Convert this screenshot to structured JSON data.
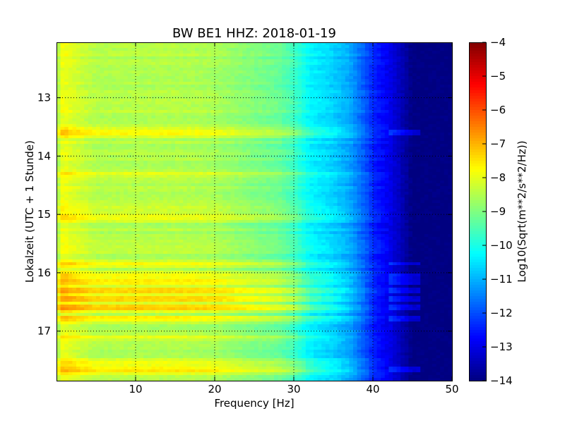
{
  "chart_data": {
    "type": "heatmap",
    "title": "BW BE1 HHZ: 2018-01-19",
    "xlabel": "Frequency [Hz]",
    "ylabel": "Lokalzeit (UTC + 1 Stunde)",
    "xlim": [
      0,
      50
    ],
    "ylim_top_to_bottom": [
      12.05,
      17.85
    ],
    "x_ticks": [
      10,
      20,
      30,
      40,
      50
    ],
    "y_ticks": [
      13,
      14,
      15,
      16,
      17
    ],
    "grid": true,
    "colormap": "jet",
    "colorbar": {
      "label": "Log10(Sqrt(m**2/s**2/Hz))",
      "range": [
        -14,
        -4
      ],
      "ticks": [
        -4,
        -5,
        -6,
        -7,
        -8,
        -9,
        -10,
        -11,
        -12,
        -13,
        -14
      ]
    },
    "frequency_profile": {
      "frequency_hz": [
        0,
        0.5,
        1,
        2,
        5,
        10,
        15,
        20,
        25,
        28,
        30,
        32,
        35,
        37,
        39,
        40,
        42,
        44,
        45,
        46,
        48,
        50
      ],
      "log10_amplitude": [
        -8.9,
        -8.0,
        -7.9,
        -8.1,
        -8.5,
        -8.5,
        -8.5,
        -8.6,
        -9.0,
        -9.2,
        -9.6,
        -10.3,
        -10.7,
        -11.1,
        -11.9,
        -12.4,
        -12.9,
        -13.6,
        -14.0,
        -14.0,
        -14.0,
        -14.0
      ]
    },
    "louder_time_bands": [
      {
        "time": 13.6,
        "excess": 0.7
      },
      {
        "time": 14.3,
        "excess": 0.4
      },
      {
        "time": 14.85,
        "excess": 0.3
      },
      {
        "time": 15.05,
        "excess": 0.5
      },
      {
        "time": 15.85,
        "excess": 0.8
      },
      {
        "time": 16.05,
        "excess": 0.7
      },
      {
        "time": 16.15,
        "excess": 1.0
      },
      {
        "time": 16.3,
        "excess": 1.0
      },
      {
        "time": 16.45,
        "excess": 1.3
      },
      {
        "time": 16.6,
        "excess": 1.3
      },
      {
        "time": 16.8,
        "excess": 0.8
      },
      {
        "time": 17.1,
        "excess": 0.6
      },
      {
        "time": 17.55,
        "excess": 0.6
      },
      {
        "time": 17.65,
        "excess": 0.9
      }
    ]
  }
}
